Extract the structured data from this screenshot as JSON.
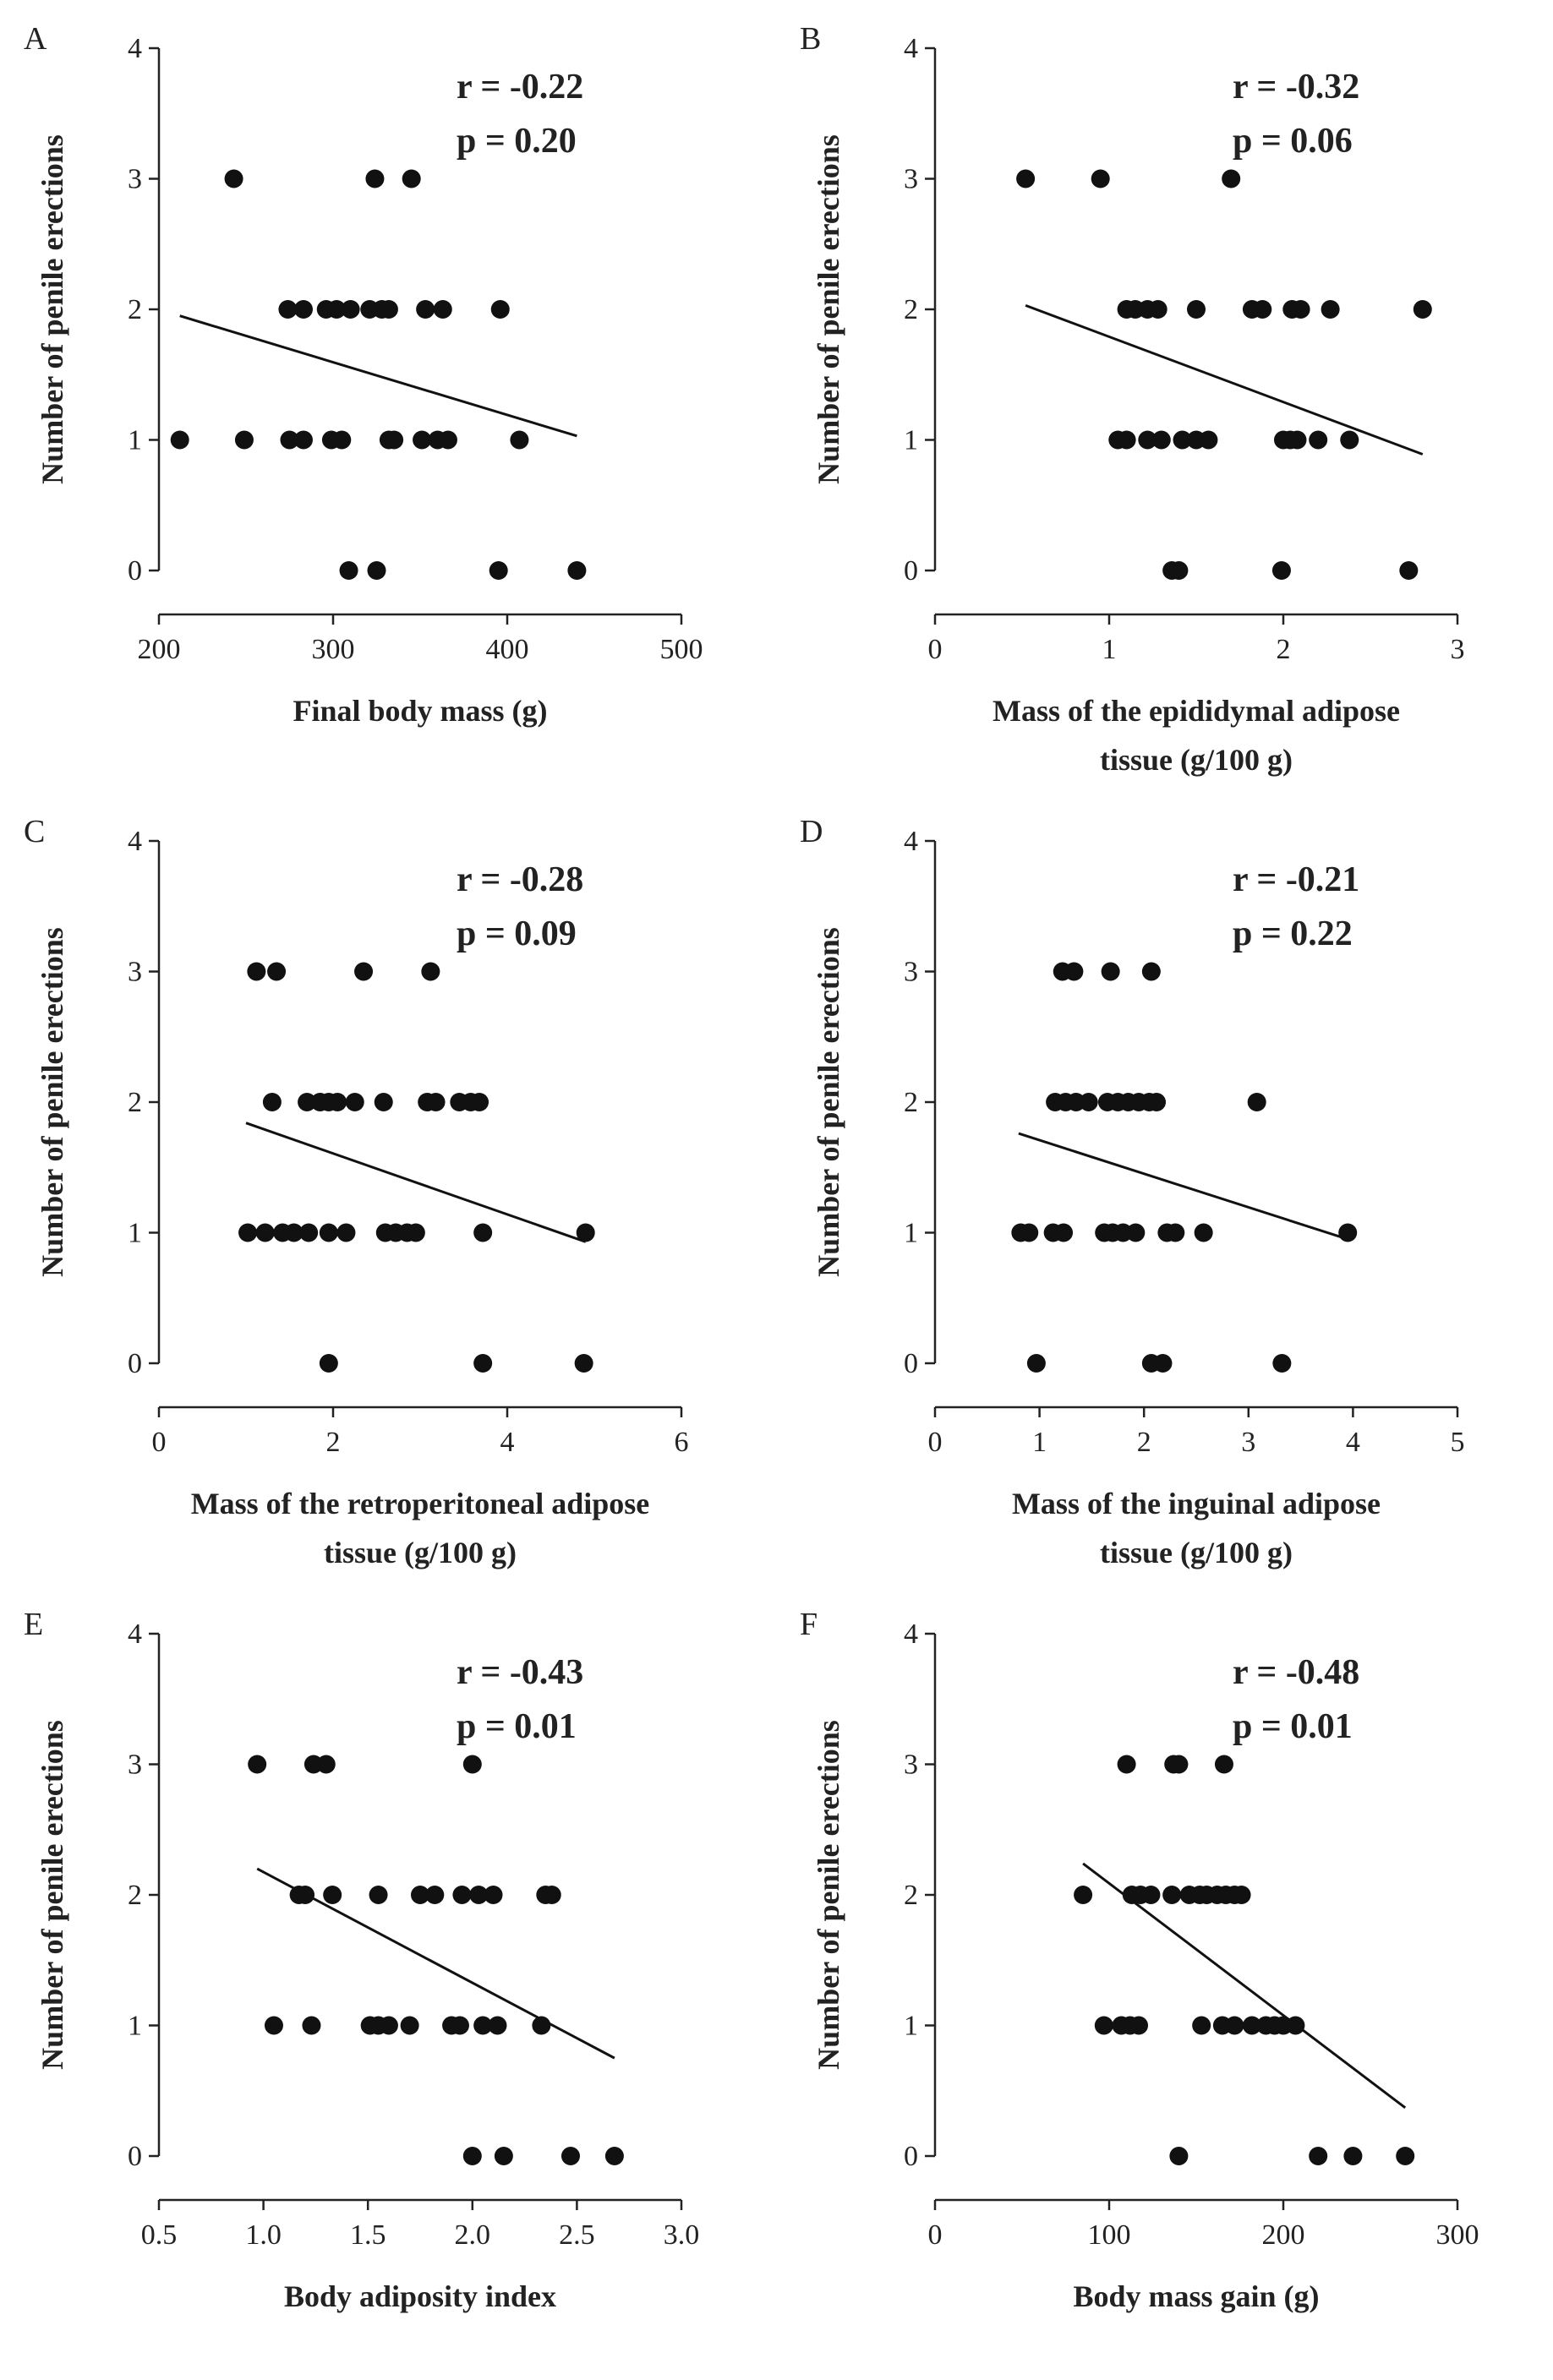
{
  "chart_data": [
    {
      "panel": "A",
      "type": "scatter",
      "xlabel": [
        "Final body mass (g)"
      ],
      "ylabel": "Number of penile erections",
      "xlim": [
        200,
        500
      ],
      "xticks": [
        200,
        300,
        400,
        500
      ],
      "xtick_labels": [
        "200",
        "300",
        "400",
        "500"
      ],
      "ylim": [
        0,
        4
      ],
      "yticks": [
        0,
        1,
        2,
        3,
        4
      ],
      "ytick_labels": [
        "0",
        "1",
        "2",
        "3",
        "4"
      ],
      "stats": [
        "r = -0.22",
        "p = 0.20"
      ],
      "trendline": [
        [
          212,
          1.95
        ],
        [
          440,
          1.03
        ]
      ],
      "x": [
        243,
        324,
        345,
        274,
        283,
        296,
        302,
        310,
        321,
        328,
        332,
        353,
        363,
        396,
        212,
        249,
        275,
        283,
        299,
        305,
        332,
        335,
        351,
        360,
        366,
        407,
        309,
        325,
        395,
        440
      ],
      "y": [
        3,
        3,
        3,
        2,
        2,
        2,
        2,
        2,
        2,
        2,
        2,
        2,
        2,
        2,
        1,
        1,
        1,
        1,
        1,
        1,
        1,
        1,
        1,
        1,
        1,
        1,
        0,
        0,
        0,
        0
      ]
    },
    {
      "panel": "B",
      "type": "scatter",
      "xlabel": [
        "Mass of the epididymal adipose",
        "tissue (g/100 g)"
      ],
      "ylabel": "Number of penile erections",
      "xlim": [
        0,
        3
      ],
      "xticks": [
        0,
        1,
        2,
        3
      ],
      "xtick_labels": [
        "0",
        "1",
        "2",
        "3"
      ],
      "ylim": [
        0,
        4
      ],
      "yticks": [
        0,
        1,
        2,
        3,
        4
      ],
      "ytick_labels": [
        "0",
        "1",
        "2",
        "3",
        "4"
      ],
      "stats": [
        "r = -0.32",
        "p = 0.06"
      ],
      "trendline": [
        [
          0.52,
          2.03
        ],
        [
          2.8,
          0.89
        ]
      ],
      "x": [
        0.52,
        0.95,
        1.7,
        1.1,
        1.15,
        1.22,
        1.28,
        1.5,
        1.82,
        1.88,
        2.05,
        2.1,
        2.27,
        2.8,
        1.05,
        1.1,
        1.22,
        1.3,
        1.42,
        1.5,
        1.57,
        2.0,
        2.04,
        2.08,
        2.2,
        2.38,
        1.36,
        1.4,
        1.99,
        2.72
      ],
      "y": [
        3,
        3,
        3,
        2,
        2,
        2,
        2,
        2,
        2,
        2,
        2,
        2,
        2,
        2,
        1,
        1,
        1,
        1,
        1,
        1,
        1,
        1,
        1,
        1,
        1,
        1,
        0,
        0,
        0,
        0
      ]
    },
    {
      "panel": "C",
      "type": "scatter",
      "xlabel": [
        "Mass of the retroperitoneal adipose",
        "tissue (g/100 g)"
      ],
      "ylabel": "Number of penile erections",
      "xlim": [
        0,
        6
      ],
      "xticks": [
        0,
        2,
        4,
        6
      ],
      "xtick_labels": [
        "0",
        "2",
        "4",
        "6"
      ],
      "ylim": [
        0,
        4
      ],
      "yticks": [
        0,
        1,
        2,
        3,
        4
      ],
      "ytick_labels": [
        "0",
        "1",
        "2",
        "3",
        "4"
      ],
      "stats": [
        "r = -0.28",
        "p = 0.09"
      ],
      "trendline": [
        [
          1.0,
          1.84
        ],
        [
          4.9,
          0.93
        ]
      ],
      "x": [
        1.12,
        1.35,
        2.35,
        3.12,
        1.3,
        1.7,
        1.85,
        1.95,
        2.05,
        2.25,
        2.58,
        3.08,
        3.18,
        3.45,
        3.58,
        3.68,
        1.02,
        1.22,
        1.42,
        1.55,
        1.72,
        1.95,
        2.15,
        2.6,
        2.72,
        2.85,
        2.95,
        3.72,
        4.9,
        1.95,
        3.72,
        4.88
      ],
      "y": [
        3,
        3,
        3,
        3,
        2,
        2,
        2,
        2,
        2,
        2,
        2,
        2,
        2,
        2,
        2,
        2,
        1,
        1,
        1,
        1,
        1,
        1,
        1,
        1,
        1,
        1,
        1,
        1,
        1,
        0,
        0,
        0
      ]
    },
    {
      "panel": "D",
      "type": "scatter",
      "xlabel": [
        "Mass of the inguinal adipose",
        "tissue (g/100 g)"
      ],
      "ylabel": "Number of penile erections",
      "xlim": [
        0,
        5
      ],
      "xticks": [
        0,
        1,
        2,
        3,
        4,
        5
      ],
      "xtick_labels": [
        "0",
        "1",
        "2",
        "3",
        "4",
        "5"
      ],
      "ylim": [
        0,
        4
      ],
      "yticks": [
        0,
        1,
        2,
        3,
        4
      ],
      "ytick_labels": [
        "0",
        "1",
        "2",
        "3",
        "4"
      ],
      "stats": [
        "r = -0.21",
        "p = 0.22"
      ],
      "trendline": [
        [
          0.8,
          1.76
        ],
        [
          3.95,
          0.95
        ]
      ],
      "x": [
        1.22,
        1.33,
        1.68,
        2.07,
        1.15,
        1.25,
        1.35,
        1.47,
        1.65,
        1.75,
        1.85,
        1.95,
        2.05,
        2.12,
        3.08,
        0.82,
        0.9,
        1.13,
        1.23,
        1.62,
        1.7,
        1.8,
        1.92,
        2.22,
        2.3,
        2.57,
        3.95,
        0.97,
        2.07,
        2.18,
        3.32
      ],
      "y": [
        3,
        3,
        3,
        3,
        2,
        2,
        2,
        2,
        2,
        2,
        2,
        2,
        2,
        2,
        2,
        1,
        1,
        1,
        1,
        1,
        1,
        1,
        1,
        1,
        1,
        1,
        1,
        0,
        0,
        0,
        0
      ]
    },
    {
      "panel": "E",
      "type": "scatter",
      "xlabel": [
        "Body adiposity index"
      ],
      "ylabel": "Number of penile erections",
      "xlim": [
        0.5,
        3.0
      ],
      "xticks": [
        0.5,
        1.0,
        1.5,
        2.0,
        2.5,
        3.0
      ],
      "xtick_labels": [
        "0.5",
        "1.0",
        "1.5",
        "2.0",
        "2.5",
        "3.0"
      ],
      "ylim": [
        0,
        4
      ],
      "yticks": [
        0,
        1,
        2,
        3,
        4
      ],
      "ytick_labels": [
        "0",
        "1",
        "2",
        "3",
        "4"
      ],
      "stats": [
        "r = -0.43",
        "p = 0.01"
      ],
      "trendline": [
        [
          0.97,
          2.2
        ],
        [
          2.68,
          0.75
        ]
      ],
      "x": [
        0.97,
        1.24,
        1.3,
        2.0,
        1.17,
        1.2,
        1.33,
        1.55,
        1.75,
        1.82,
        1.95,
        2.03,
        2.1,
        2.35,
        2.38,
        1.05,
        1.23,
        1.51,
        1.55,
        1.6,
        1.7,
        1.9,
        1.94,
        2.05,
        2.12,
        2.33,
        2.0,
        2.15,
        2.47,
        2.68
      ],
      "y": [
        3,
        3,
        3,
        3,
        2,
        2,
        2,
        2,
        2,
        2,
        2,
        2,
        2,
        2,
        2,
        1,
        1,
        1,
        1,
        1,
        1,
        1,
        1,
        1,
        1,
        1,
        0,
        0,
        0,
        0
      ]
    },
    {
      "panel": "F",
      "type": "scatter",
      "xlabel": [
        "Body mass gain (g)"
      ],
      "ylabel": "Number of penile erections",
      "xlim": [
        0,
        300
      ],
      "xticks": [
        0,
        100,
        200,
        300
      ],
      "xtick_labels": [
        "0",
        "100",
        "200",
        "300"
      ],
      "ylim": [
        0,
        4
      ],
      "yticks": [
        0,
        1,
        2,
        3,
        4
      ],
      "ytick_labels": [
        "0",
        "1",
        "2",
        "3",
        "4"
      ],
      "stats": [
        "r = -0.48",
        "p = 0.01"
      ],
      "trendline": [
        [
          85,
          2.24
        ],
        [
          270,
          0.37
        ]
      ],
      "x": [
        110,
        137,
        140,
        166,
        85,
        113,
        118,
        124,
        136,
        146,
        152,
        156,
        162,
        167,
        172,
        176,
        97,
        107,
        112,
        117,
        153,
        165,
        172,
        182,
        190,
        195,
        200,
        207,
        140,
        220,
        240,
        270
      ],
      "y": [
        3,
        3,
        3,
        3,
        2,
        2,
        2,
        2,
        2,
        2,
        2,
        2,
        2,
        2,
        2,
        2,
        1,
        1,
        1,
        1,
        1,
        1,
        1,
        1,
        1,
        1,
        1,
        1,
        0,
        0,
        0,
        0
      ]
    }
  ]
}
